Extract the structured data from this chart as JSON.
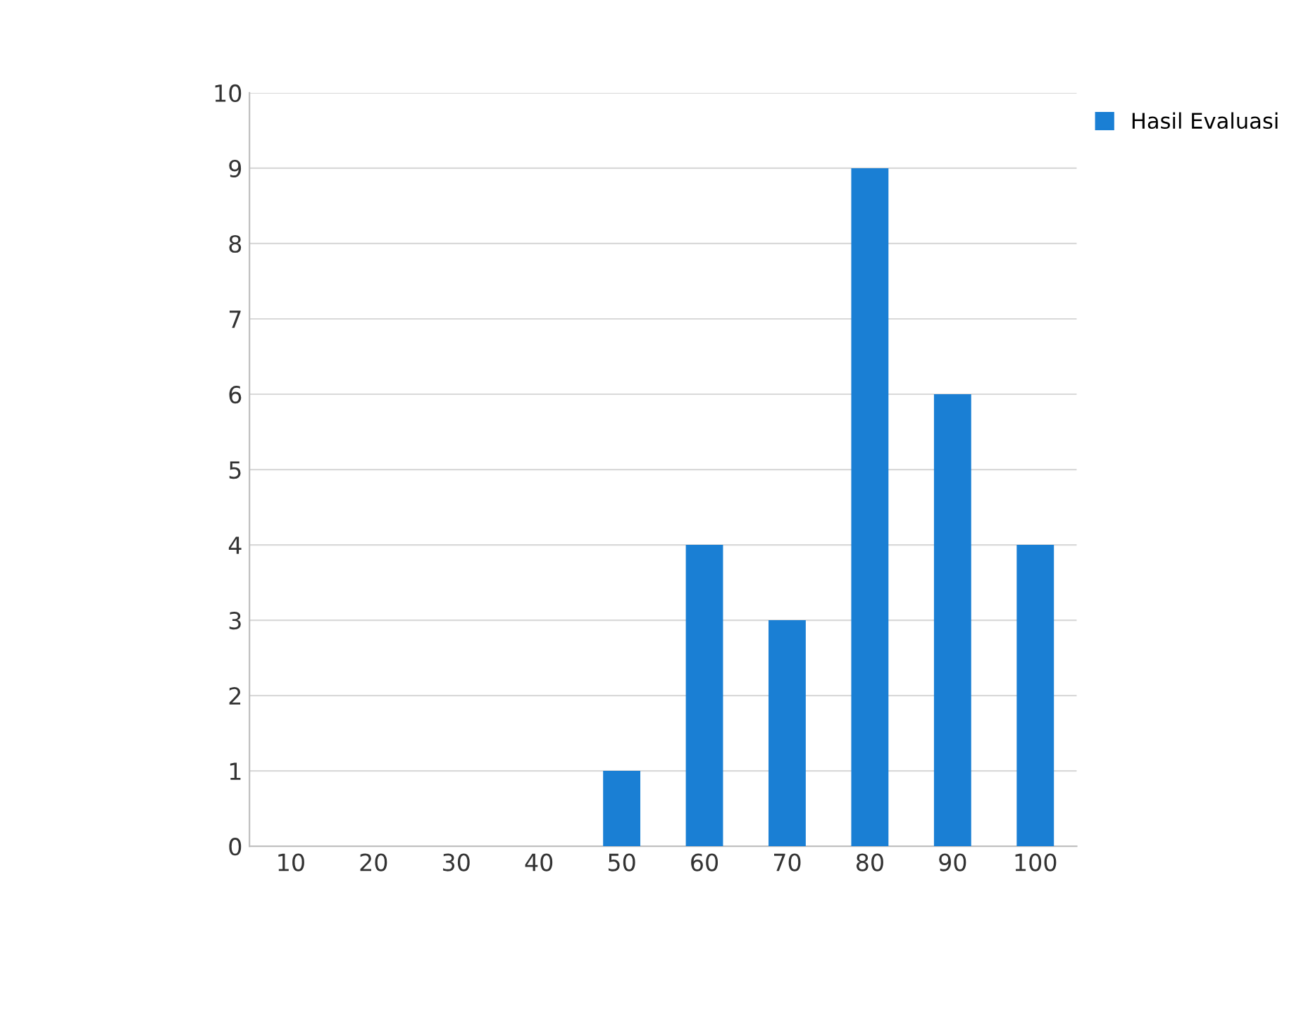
{
  "chart_data": {
    "type": "bar",
    "categories": [
      "10",
      "20",
      "30",
      "40",
      "50",
      "60",
      "70",
      "80",
      "90",
      "100"
    ],
    "series": [
      {
        "name": "Hasil Evaluasi",
        "color": "#1a7fd4",
        "values": [
          0,
          0,
          0,
          0,
          1,
          4,
          3,
          9,
          6,
          4
        ]
      }
    ],
    "ylim": [
      0,
      10
    ],
    "yticks": [
      0,
      1,
      2,
      3,
      4,
      5,
      6,
      7,
      8,
      9,
      10
    ],
    "grid": "y",
    "legend": "top right"
  }
}
